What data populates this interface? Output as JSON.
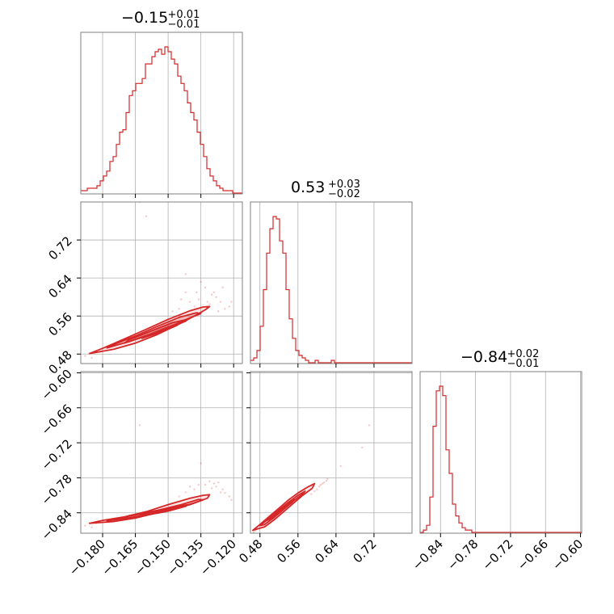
{
  "chart_data": {
    "type": "corner",
    "color": "#d62728",
    "params": [
      {
        "title": {
          "value": "−0.15",
          "upper": "+0.01",
          "lower": "−0.01"
        },
        "range": [
          -0.19,
          -0.116
        ],
        "ticks": [
          -0.18,
          -0.165,
          -0.15,
          -0.135,
          -0.12
        ],
        "tick_labels": [
          "−0.180",
          "−0.165",
          "−0.150",
          "−0.135",
          "−0.120"
        ],
        "hist": {
          "start": -0.19,
          "bin_width": 0.00148,
          "counts": [
            1,
            1,
            2,
            2,
            2,
            3,
            5,
            7,
            9,
            13,
            15,
            20,
            25,
            26,
            33,
            40,
            42,
            45,
            45,
            47,
            53,
            53,
            56,
            58,
            59,
            57,
            60,
            58,
            55,
            53,
            48,
            45,
            42,
            37,
            33,
            30,
            25,
            20,
            15,
            10,
            7,
            5,
            3,
            2,
            1,
            1,
            1,
            0,
            0,
            0
          ]
        }
      },
      {
        "title": {
          "value": "0.53",
          "upper": "+0.03",
          "lower": "−0.02"
        },
        "range": [
          0.46,
          0.8
        ],
        "ticks": [
          0.48,
          0.56,
          0.64,
          0.72
        ],
        "tick_labels": [
          "0.48",
          "0.56",
          "0.64",
          "0.72"
        ],
        "hist": {
          "start": 0.46,
          "bin_width": 0.0068,
          "counts": [
            1,
            2,
            5,
            15,
            30,
            45,
            55,
            60,
            59,
            50,
            45,
            30,
            18,
            10,
            5,
            3,
            2,
            1,
            0,
            0,
            1,
            0,
            0,
            0,
            0,
            1,
            0,
            0,
            0,
            0,
            0,
            0,
            0,
            0,
            0,
            0,
            0,
            0,
            0,
            0,
            0,
            0,
            0,
            0,
            0,
            0,
            0,
            0,
            0,
            0
          ]
        }
      },
      {
        "title": {
          "value": "−0.84",
          "upper": "+0.02",
          "lower": "−0.01"
        },
        "range": [
          -0.875,
          -0.598
        ],
        "ticks": [
          -0.84,
          -0.78,
          -0.72,
          -0.66,
          -0.6
        ],
        "tick_labels": [
          "−0.84",
          "−0.78",
          "−0.72",
          "−0.66",
          "−0.60"
        ],
        "hist": {
          "start": -0.875,
          "bin_width": 0.00554,
          "counts": [
            0,
            1,
            3,
            15,
            45,
            60,
            62,
            58,
            35,
            25,
            12,
            7,
            4,
            2,
            1,
            1,
            0,
            0,
            0,
            0,
            0,
            0,
            0,
            0,
            0,
            0,
            0,
            0,
            0,
            0,
            0,
            0,
            0,
            0,
            0,
            0,
            0,
            0,
            0,
            0,
            0,
            0,
            0,
            0,
            0,
            0,
            0,
            0,
            0,
            0
          ]
        }
      }
    ],
    "pairs": [
      {
        "row": 1,
        "col": 0,
        "contours": [
          [
            [
              -0.186,
              0.481
            ],
            [
              -0.175,
              0.49
            ],
            [
              -0.165,
              0.503
            ],
            [
              -0.155,
              0.521
            ],
            [
              -0.145,
              0.543
            ],
            [
              -0.138,
              0.56
            ],
            [
              -0.133,
              0.573
            ],
            [
              -0.131,
              0.58
            ],
            [
              -0.134,
              0.579
            ],
            [
              -0.14,
              0.571
            ],
            [
              -0.15,
              0.553
            ],
            [
              -0.16,
              0.532
            ],
            [
              -0.17,
              0.512
            ],
            [
              -0.18,
              0.492
            ]
          ],
          [
            [
              -0.178,
              0.493
            ],
            [
              -0.168,
              0.506
            ],
            [
              -0.158,
              0.522
            ],
            [
              -0.148,
              0.54
            ],
            [
              -0.14,
              0.556
            ],
            [
              -0.135,
              0.565
            ],
            [
              -0.137,
              0.567
            ],
            [
              -0.145,
              0.557
            ],
            [
              -0.155,
              0.538
            ],
            [
              -0.165,
              0.518
            ],
            [
              -0.175,
              0.5
            ]
          ],
          [
            [
              -0.17,
              0.503
            ],
            [
              -0.16,
              0.518
            ],
            [
              -0.15,
              0.535
            ],
            [
              -0.142,
              0.549
            ],
            [
              -0.141,
              0.553
            ],
            [
              -0.148,
              0.546
            ],
            [
              -0.158,
              0.528
            ],
            [
              -0.168,
              0.51
            ]
          ],
          [
            [
              -0.162,
              0.513
            ],
            [
              -0.153,
              0.527
            ],
            [
              -0.146,
              0.54
            ],
            [
              -0.15,
              0.537
            ],
            [
              -0.158,
              0.522
            ]
          ]
        ],
        "points": [
          [
            -0.163,
            0.8
          ],
          [
            -0.16,
            0.77
          ],
          [
            -0.142,
            0.648
          ],
          [
            -0.135,
            0.632
          ],
          [
            -0.125,
            0.62
          ],
          [
            -0.128,
            0.6
          ],
          [
            -0.132,
            0.59
          ],
          [
            -0.13,
            0.605
          ],
          [
            -0.122,
            0.58
          ],
          [
            -0.126,
            0.59
          ],
          [
            -0.138,
            0.58
          ],
          [
            -0.14,
            0.59
          ],
          [
            -0.129,
            0.61
          ],
          [
            -0.124,
            0.575
          ],
          [
            -0.136,
            0.595
          ],
          [
            -0.142,
            0.61
          ],
          [
            -0.133,
            0.62
          ],
          [
            -0.127,
            0.57
          ],
          [
            -0.131,
            0.585
          ],
          [
            -0.121,
            0.59
          ],
          [
            -0.145,
            0.575
          ],
          [
            -0.148,
            0.57
          ],
          [
            -0.139,
            0.565
          ],
          [
            -0.137,
            0.61
          ],
          [
            -0.144,
            0.595
          ],
          [
            -0.188,
            0.476
          ],
          [
            -0.185,
            0.472
          ],
          [
            -0.183,
            0.485
          ]
        ]
      },
      {
        "row": 2,
        "col": 0,
        "contours": [
          [
            [
              -0.186,
              -0.858
            ],
            [
              -0.175,
              -0.855
            ],
            [
              -0.165,
              -0.849
            ],
            [
              -0.155,
              -0.84
            ],
            [
              -0.145,
              -0.831
            ],
            [
              -0.138,
              -0.823
            ],
            [
              -0.132,
              -0.815
            ],
            [
              -0.131,
              -0.809
            ],
            [
              -0.134,
              -0.81
            ],
            [
              -0.14,
              -0.815
            ],
            [
              -0.15,
              -0.826
            ],
            [
              -0.16,
              -0.838
            ],
            [
              -0.17,
              -0.847
            ],
            [
              -0.18,
              -0.853
            ]
          ],
          [
            [
              -0.178,
              -0.854
            ],
            [
              -0.168,
              -0.849
            ],
            [
              -0.158,
              -0.842
            ],
            [
              -0.148,
              -0.834
            ],
            [
              -0.14,
              -0.826
            ],
            [
              -0.134,
              -0.818
            ],
            [
              -0.136,
              -0.817
            ],
            [
              -0.144,
              -0.826
            ],
            [
              -0.154,
              -0.835
            ],
            [
              -0.164,
              -0.843
            ],
            [
              -0.174,
              -0.85
            ]
          ],
          [
            [
              -0.17,
              -0.85
            ],
            [
              -0.16,
              -0.844
            ],
            [
              -0.15,
              -0.837
            ],
            [
              -0.142,
              -0.829
            ],
            [
              -0.141,
              -0.826
            ],
            [
              -0.148,
              -0.831
            ],
            [
              -0.158,
              -0.838
            ],
            [
              -0.168,
              -0.845
            ]
          ],
          [
            [
              -0.163,
              -0.845
            ],
            [
              -0.154,
              -0.84
            ],
            [
              -0.147,
              -0.834
            ],
            [
              -0.15,
              -0.834
            ],
            [
              -0.158,
              -0.839
            ]
          ]
        ],
        "points": [
          [
            -0.163,
            -0.69
          ],
          [
            -0.135,
            -0.755
          ],
          [
            -0.128,
            -0.795
          ],
          [
            -0.125,
            -0.8
          ],
          [
            -0.133,
            -0.792
          ],
          [
            -0.122,
            -0.812
          ],
          [
            -0.126,
            -0.805
          ],
          [
            -0.13,
            -0.798
          ],
          [
            -0.138,
            -0.8
          ],
          [
            -0.14,
            -0.795
          ],
          [
            -0.121,
            -0.818
          ],
          [
            -0.129,
            -0.79
          ],
          [
            -0.136,
            -0.792
          ],
          [
            -0.142,
            -0.805
          ],
          [
            -0.131,
            -0.786
          ],
          [
            -0.127,
            -0.788
          ],
          [
            -0.124,
            -0.806
          ],
          [
            -0.145,
            -0.812
          ],
          [
            -0.188,
            -0.862
          ],
          [
            -0.185,
            -0.865
          ],
          [
            -0.183,
            -0.858
          ]
        ]
      },
      {
        "row": 2,
        "col": 1,
        "contours": [
          [
            [
              0.465,
              -0.87
            ],
            [
              0.48,
              -0.86
            ],
            [
              0.5,
              -0.846
            ],
            [
              0.52,
              -0.832
            ],
            [
              0.54,
              -0.818
            ],
            [
              0.56,
              -0.806
            ],
            [
              0.58,
              -0.796
            ],
            [
              0.595,
              -0.79
            ],
            [
              0.59,
              -0.798
            ],
            [
              0.57,
              -0.81
            ],
            [
              0.55,
              -0.824
            ],
            [
              0.53,
              -0.838
            ],
            [
              0.51,
              -0.852
            ],
            [
              0.49,
              -0.864
            ]
          ],
          [
            [
              0.48,
              -0.862
            ],
            [
              0.5,
              -0.849
            ],
            [
              0.52,
              -0.835
            ],
            [
              0.54,
              -0.822
            ],
            [
              0.56,
              -0.81
            ],
            [
              0.575,
              -0.803
            ],
            [
              0.57,
              -0.808
            ],
            [
              0.55,
              -0.82
            ],
            [
              0.53,
              -0.834
            ],
            [
              0.51,
              -0.848
            ],
            [
              0.49,
              -0.86
            ]
          ],
          [
            [
              0.495,
              -0.853
            ],
            [
              0.515,
              -0.84
            ],
            [
              0.535,
              -0.827
            ],
            [
              0.552,
              -0.817
            ],
            [
              0.548,
              -0.822
            ],
            [
              0.528,
              -0.835
            ],
            [
              0.508,
              -0.848
            ]
          ],
          [
            [
              0.507,
              -0.845
            ],
            [
              0.525,
              -0.833
            ],
            [
              0.54,
              -0.824
            ],
            [
              0.535,
              -0.83
            ],
            [
              0.518,
              -0.841
            ]
          ]
        ],
        "points": [
          [
            0.71,
            -0.69
          ],
          [
            0.695,
            -0.728
          ],
          [
            0.65,
            -0.76
          ],
          [
            0.62,
            -0.785
          ],
          [
            0.612,
            -0.79
          ],
          [
            0.605,
            -0.795
          ],
          [
            0.6,
            -0.8
          ],
          [
            0.595,
            -0.803
          ],
          [
            0.588,
            -0.808
          ],
          [
            0.615,
            -0.788
          ],
          [
            0.622,
            -0.782
          ],
          [
            0.608,
            -0.792
          ],
          [
            0.47,
            -0.87
          ],
          [
            0.467,
            -0.873
          ]
        ]
      }
    ],
    "grid": true
  }
}
